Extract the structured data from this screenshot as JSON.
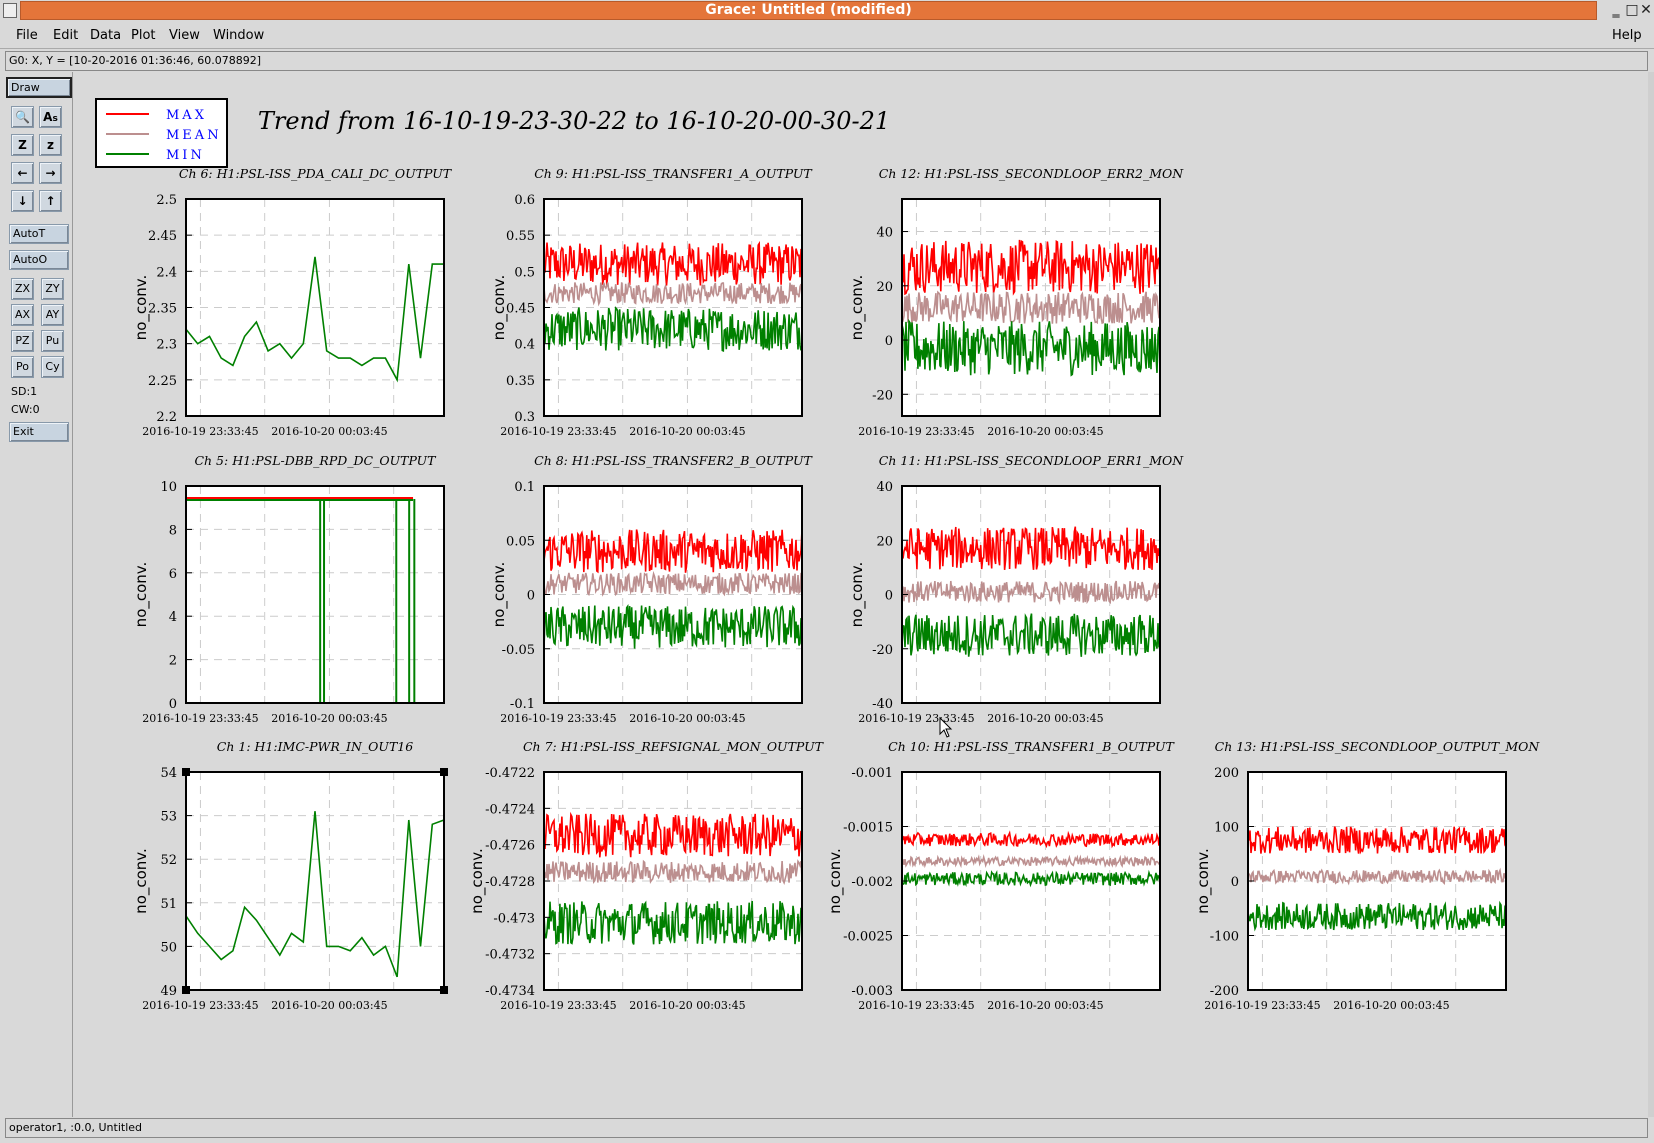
{
  "window": {
    "title": "Grace: Untitled (modified)",
    "controls": {
      "minimize": "‗",
      "maximize": "□",
      "close": "✕"
    }
  },
  "menu": {
    "file": "File",
    "edit": "Edit",
    "data": "Data",
    "plot": "Plot",
    "view": "View",
    "window": "Window",
    "help": "Help"
  },
  "locator": "G0: X, Y = [10-20-2016 01:36:46, 60.078892]",
  "toolbar": {
    "draw": "Draw",
    "autot": "AutoT",
    "autoo": "AutoO",
    "zx": "ZX",
    "zy": "ZY",
    "ax": "AX",
    "ay": "AY",
    "pz": "PZ",
    "pu": "Pu",
    "po": "Po",
    "cy": "Cy",
    "sd": "SD:1",
    "cw": "CW:0",
    "exit": "Exit"
  },
  "status": "operator1, :0.0, Untitled",
  "chart_data": {
    "title": "Trend from 16-10-19-23-30-22 to 16-10-20-00-30-21",
    "legend": [
      {
        "name": "MAX",
        "color": "#ff0000"
      },
      {
        "name": "MEAN",
        "color": "#bc8f8f"
      },
      {
        "name": "MIN",
        "color": "#008000"
      }
    ],
    "x_tick_labels": [
      "2016-10-19 23:33:45",
      "2016-10-20 00:03:45"
    ],
    "x_range": [
      "2016-10-19 23:30:22",
      "2016-10-20 00:30:21"
    ],
    "grid": true,
    "legend_placement": "top-left",
    "panels": [
      {
        "title": "Ch 6: H1:PSL-ISS_PDA_CALI_DC_OUTPUT",
        "ylabel": "no_conv.",
        "type": "line",
        "yticks": [
          "2.5",
          "2.45",
          "2.4",
          "2.35",
          "2.3",
          "2.25",
          "2.2"
        ],
        "ylim": [
          2.2,
          2.5
        ],
        "series": [
          {
            "name": "MIN",
            "values": [
              2.32,
              2.3,
              2.31,
              2.28,
              2.27,
              2.31,
              2.33,
              2.29,
              2.3,
              2.28,
              2.3,
              2.42,
              2.29,
              2.28,
              2.28,
              2.27,
              2.28,
              2.28,
              2.25,
              2.41,
              2.28,
              2.41,
              2.41
            ]
          }
        ]
      },
      {
        "title": "Ch 9: H1:PSL-ISS_TRANSFER1_A_OUTPUT",
        "ylabel": "no_conv.",
        "type": "line",
        "yticks": [
          "0.6",
          "0.55",
          "0.5",
          "0.45",
          "0.4",
          "0.35",
          "0.3"
        ],
        "ylim": [
          0.3,
          0.6
        ],
        "series": [
          {
            "name": "MAX",
            "mean": 0.51,
            "spread": 0.03
          },
          {
            "name": "MEAN",
            "mean": 0.47,
            "spread": 0.015
          },
          {
            "name": "MIN",
            "mean": 0.42,
            "spread": 0.03
          }
        ]
      },
      {
        "title": "Ch 12: H1:PSL-ISS_SECONDLOOP_ERR2_MON",
        "ylabel": "no_conv.",
        "type": "line",
        "yticks": [
          "40",
          "20",
          "0",
          "-20"
        ],
        "ylim": [
          -28,
          52
        ],
        "series": [
          {
            "name": "MAX",
            "mean": 27,
            "spread": 10
          },
          {
            "name": "MEAN",
            "mean": 12,
            "spread": 6
          },
          {
            "name": "MIN",
            "mean": -3,
            "spread": 10
          }
        ]
      },
      {
        "title": "Ch 5: H1:PSL-DBB_RPD_DC_OUTPUT",
        "ylabel": "no_conv.",
        "type": "line",
        "yticks": [
          "10",
          "8",
          "6",
          "4",
          "2",
          "0"
        ],
        "ylim": [
          0,
          10
        ],
        "series": [
          {
            "name": "MIN",
            "mean": 9.4,
            "spread": 0.1
          }
        ]
      },
      {
        "title": "Ch 8: H1:PSL-ISS_TRANSFER2_B_OUTPUT",
        "ylabel": "no_conv.",
        "type": "line",
        "yticks": [
          "0.1",
          "0.05",
          "0",
          "-0.05",
          "-0.1"
        ],
        "ylim": [
          -0.1,
          0.1
        ],
        "series": [
          {
            "name": "MAX",
            "mean": 0.04,
            "spread": 0.02
          },
          {
            "name": "MEAN",
            "mean": 0.01,
            "spread": 0.01
          },
          {
            "name": "MIN",
            "mean": -0.03,
            "spread": 0.02
          }
        ]
      },
      {
        "title": "Ch 11: H1:PSL-ISS_SECONDLOOP_ERR1_MON",
        "ylabel": "no_conv.",
        "type": "line",
        "yticks": [
          "40",
          "20",
          "0",
          "-20",
          "-40"
        ],
        "ylim": [
          -40,
          40
        ],
        "series": [
          {
            "name": "MAX",
            "mean": 17,
            "spread": 8
          },
          {
            "name": "MEAN",
            "mean": 1,
            "spread": 4
          },
          {
            "name": "MIN",
            "mean": -15,
            "spread": 8
          }
        ]
      },
      {
        "title": "Ch 1: H1:IMC-PWR_IN_OUT16",
        "ylabel": "no_conv.",
        "type": "line",
        "yticks": [
          "54",
          "53",
          "52",
          "51",
          "50",
          "49"
        ],
        "ylim": [
          49,
          54
        ],
        "series": [
          {
            "name": "MIN",
            "values": [
              50.7,
              50.3,
              50.0,
              49.7,
              49.9,
              50.9,
              50.6,
              50.2,
              49.8,
              50.3,
              50.1,
              53.1,
              50.0,
              50.0,
              49.9,
              50.2,
              49.8,
              50.0,
              49.3,
              52.9,
              50.0,
              52.8,
              52.9
            ]
          }
        ]
      },
      {
        "title": "Ch 7: H1:PSL-ISS_REFSIGNAL_MON_OUTPUT",
        "ylabel": "no_conv.",
        "type": "line",
        "yticks": [
          "-0.4722",
          "-0.4724",
          "-0.4726",
          "-0.4728",
          "-0.473",
          "-0.4732",
          "-0.4734"
        ],
        "ylim": [
          -0.4734,
          -0.4722
        ],
        "series": [
          {
            "name": "MAX",
            "mean": -0.47255,
            "spread": 0.00012
          },
          {
            "name": "MEAN",
            "mean": -0.47275,
            "spread": 6e-05
          },
          {
            "name": "MIN",
            "mean": -0.47303,
            "spread": 0.00012
          }
        ]
      },
      {
        "title": "Ch 10: H1:PSL-ISS_TRANSFER1_B_OUTPUT",
        "ylabel": "no_conv.",
        "type": "line",
        "yticks": [
          "-0.001",
          "-0.0015",
          "-0.002",
          "-0.0025",
          "-0.003"
        ],
        "ylim": [
          -0.003,
          -0.001
        ],
        "series": [
          {
            "name": "MAX",
            "mean": -0.00162,
            "spread": 6e-05
          },
          {
            "name": "MEAN",
            "mean": -0.00182,
            "spread": 4e-05
          },
          {
            "name": "MIN",
            "mean": -0.00198,
            "spread": 6e-05
          }
        ]
      },
      {
        "title": "Ch 13: H1:PSL-ISS_SECONDLOOP_OUTPUT_MON",
        "ylabel": "no_conv.",
        "type": "line",
        "yticks": [
          "200",
          "100",
          "0",
          "-100",
          "-200"
        ],
        "ylim": [
          -200,
          200
        ],
        "series": [
          {
            "name": "MAX",
            "mean": 75,
            "spread": 25
          },
          {
            "name": "MEAN",
            "mean": 8,
            "spread": 12
          },
          {
            "name": "MIN",
            "mean": -65,
            "spread": 25
          }
        ]
      }
    ]
  }
}
